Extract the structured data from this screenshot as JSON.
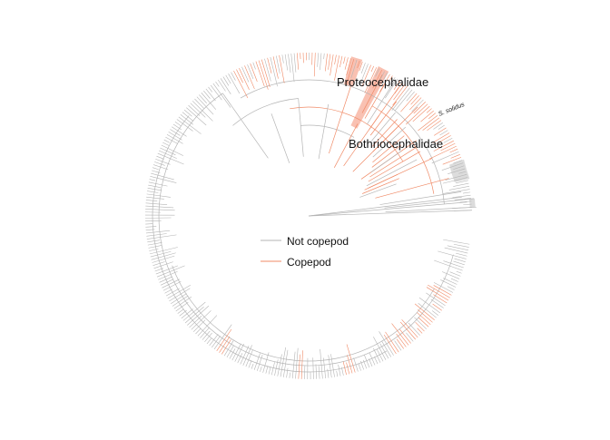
{
  "figure": {
    "clade_labels": {
      "proteocephalidae": "Proteocephalidae",
      "bothriocephalidae": "Bothriocephalidae",
      "species_tip": "S. solidus"
    },
    "legend": {
      "items": [
        {
          "label": "Not copepod",
          "color": "#b5b5b5"
        },
        {
          "label": "Copepod",
          "color": "#f08a66"
        }
      ]
    },
    "colors": {
      "not_copepod": "#b5b5b5",
      "copepod": "#f08a66",
      "highlight_copepod": "#f9c1b2",
      "highlight_not": "#dcdcdc"
    }
  }
}
